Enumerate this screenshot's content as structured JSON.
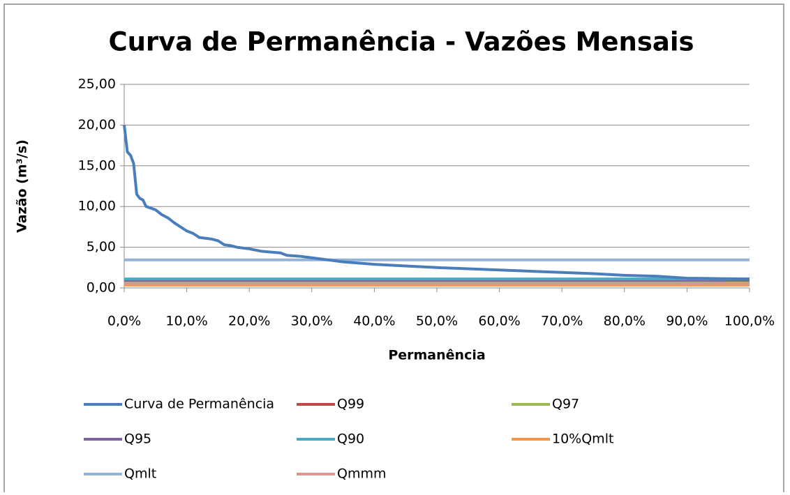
{
  "chart_data": {
    "type": "line",
    "title": "Curva de Permanência - Vazões Mensais",
    "xlabel": "Permanência",
    "ylabel": "Vazão (m³/s)",
    "xlim": [
      0,
      100
    ],
    "ylim": [
      0,
      25
    ],
    "xticks": [
      {
        "value": 0,
        "label": "0,0%"
      },
      {
        "value": 10,
        "label": "10,0%"
      },
      {
        "value": 20,
        "label": "20,0%"
      },
      {
        "value": 30,
        "label": "30,0%"
      },
      {
        "value": 40,
        "label": "40,0%"
      },
      {
        "value": 50,
        "label": "50,0%"
      },
      {
        "value": 60,
        "label": "60,0%"
      },
      {
        "value": 70,
        "label": "70,0%"
      },
      {
        "value": 80,
        "label": "80,0%"
      },
      {
        "value": 90,
        "label": "90,0%"
      },
      {
        "value": 100,
        "label": "100,0%"
      }
    ],
    "yticks": [
      {
        "value": 0,
        "label": "0,00"
      },
      {
        "value": 5,
        "label": "5,00"
      },
      {
        "value": 10,
        "label": "10,00"
      },
      {
        "value": 15,
        "label": "15,00"
      },
      {
        "value": 20,
        "label": "20,00"
      },
      {
        "value": 25,
        "label": "25,00"
      }
    ],
    "grid": true,
    "legend": "bottom",
    "series": [
      {
        "name": "Curva de Permanência",
        "color": "#4a7ebb",
        "x": [
          0,
          0.5,
          1,
          1.5,
          2,
          2.5,
          3,
          3.5,
          5,
          6,
          7,
          8,
          9,
          10,
          11,
          12,
          14,
          15,
          16,
          17,
          18,
          20,
          22,
          25,
          26,
          28,
          30,
          33,
          35,
          40,
          45,
          50,
          55,
          60,
          65,
          70,
          75,
          80,
          85,
          90,
          95,
          100
        ],
        "values": [
          20,
          16.7,
          16.3,
          15.3,
          11.5,
          11,
          10.8,
          10,
          9.6,
          9,
          8.6,
          8,
          7.5,
          7,
          6.7,
          6.2,
          6,
          5.8,
          5.3,
          5.2,
          5,
          4.8,
          4.5,
          4.3,
          4,
          3.9,
          3.7,
          3.4,
          3.2,
          2.9,
          2.7,
          2.5,
          2.35,
          2.2,
          2.05,
          1.9,
          1.75,
          1.55,
          1.45,
          1.2,
          1.15,
          1.1
        ]
      },
      {
        "name": "Q99",
        "color": "#be4b48",
        "x": [
          0,
          100
        ],
        "values": [
          0.75,
          0.75
        ]
      },
      {
        "name": "Q97",
        "color": "#98b954",
        "x": [
          0,
          100
        ],
        "values": [
          0.85,
          0.85
        ]
      },
      {
        "name": "Q95",
        "color": "#7d60a0",
        "x": [
          0,
          100
        ],
        "values": [
          0.95,
          0.95
        ]
      },
      {
        "name": "Q90",
        "color": "#46aac5",
        "x": [
          0,
          100
        ],
        "values": [
          1.1,
          1.1
        ]
      },
      {
        "name": "10%Qmlt",
        "color": "#f79646",
        "x": [
          0,
          100
        ],
        "values": [
          0.35,
          0.35
        ]
      },
      {
        "name": "Qmlt",
        "color": "#95b3d7",
        "x": [
          0,
          100
        ],
        "values": [
          3.45,
          3.45
        ]
      },
      {
        "name": "Qmmm",
        "color": "#d99694",
        "x": [
          0,
          100
        ],
        "values": [
          0.55,
          0.55
        ]
      }
    ]
  }
}
